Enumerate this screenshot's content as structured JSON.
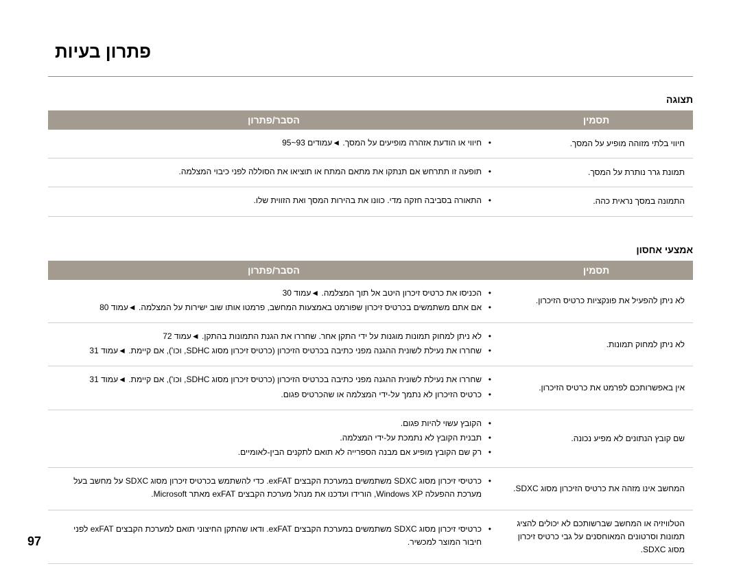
{
  "page_title": "פתרון בעיות",
  "page_number": "97",
  "colors": {
    "header_bg": "#a39b90",
    "header_fg": "#ffffff",
    "row_border": "#cfcfcf"
  },
  "sections": [
    {
      "heading": "תצוגה",
      "columns": {
        "symptom": "תסמין",
        "solution": "הסבר/פתרון"
      },
      "rows": [
        {
          "symptom": "חיווי בלתי מזוהה מופיע על המסך.",
          "bullets": [
            "חיווי או הודעת אזהרה מופיעים על המסך. ◄עמודים 93~95"
          ]
        },
        {
          "symptom": "תמונת גרר נותרת על המסך.",
          "bullets": [
            "תופעה זו תתרחש אם תנתקו את מתאם המתח או תוציאו את הסוללה לפני כיבוי המצלמה."
          ]
        },
        {
          "symptom": "התמונה במסך נראית כהה.",
          "bullets": [
            "התאורה בסביבה חזקה מדי. כוונו את בהירות המסך ואת הזווית שלו."
          ]
        }
      ]
    },
    {
      "heading": "אמצעי אחסון",
      "columns": {
        "symptom": "תסמין",
        "solution": "הסבר/פתרון"
      },
      "rows": [
        {
          "symptom": "לא ניתן להפעיל את פונקציות כרטיס הזיכרון.",
          "bullets": [
            "הכניסו את כרטיס זיכרון היטב אל תוך המצלמה. ◄עמוד 30",
            "אם אתם משתמשים בכרטיס זיכרון שפורמט באמצעות המחשב, פרמטו אותו שוב ישירות על המצלמה. ◄עמוד 80"
          ]
        },
        {
          "symptom": "לא ניתן למחוק תמונות.",
          "bullets": [
            "לא ניתן למחוק תמונות מוגנות על ידי התקן אחר. שחררו את הגנת התמונות בהתקן. ◄עמוד 72",
            "שחררו את נעילת לשונית ההגנה מפני כתיבה בכרטיס הזיכרון (כרטיס זיכרון מסוג SDHC, וכו'), אם קיימת. ◄עמוד 31"
          ]
        },
        {
          "symptom": "אין באפשרותכם לפרמט את כרטיס הזיכרון.",
          "bullets": [
            "שחררו את נעילת לשונית ההגנה מפני כתיבה בכרטיס הזיכרון (כרטיס זיכרון מסוג SDHC, וכו'), אם קיימת. ◄עמוד 31",
            "כרטיס הזיכרון לא נתמך על-ידי המצלמה או שהכרטיס פגום."
          ]
        },
        {
          "symptom": "שם קובץ הנתונים לא מפיע נכונה.",
          "bullets": [
            "הקובץ עשוי להיות פגום.",
            "תבנית הקובץ לא נתמכת על-ידי המצלמה.",
            "רק שם הקובץ מופיע אם מבנה הספרייה לא תואם לתקנים הבין-לאומיים."
          ]
        },
        {
          "symptom": "המחשב אינו מזהה את כרטיס הזיכרון מסוג SDXC.",
          "bullets": [
            "כרטיסי זיכרון מסוג SDXC משתמשים במערכת הקבצים exFAT. כדי להשתמש בכרטיס זיכרון מסוג SDXC על מחשב בעל מערכת ההפעלה Windows XP, הורידו ועדכנו את מנהל מערכת הקבצים exFAT מאתר Microsoft."
          ]
        },
        {
          "symptom": "הטלוויזיה או המחשב שברשותכם לא יכולים להציג תמונות וסרטונים המאוחסנים על גבי כרטיס זיכרון מסוג SDXC.",
          "bullets": [
            "כרטיסי זיכרון מסוג SDXC משתמשים במערכת הקבצים exFAT. ודאו שהתקן החיצוני תואם למערכת הקבצים exFAT לפני חיבור המוצר למכשיר."
          ]
        }
      ]
    }
  ]
}
